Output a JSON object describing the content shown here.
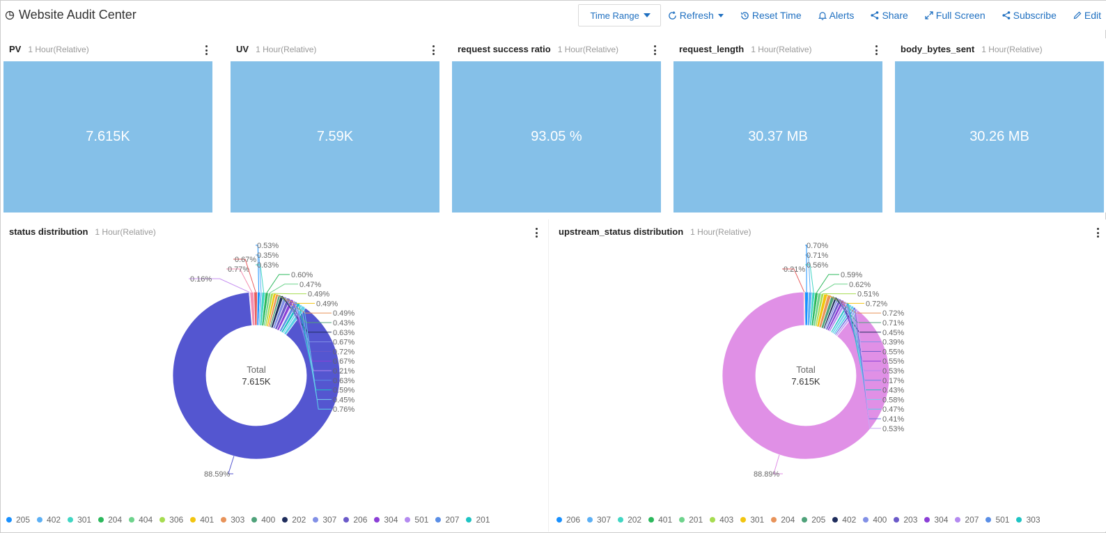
{
  "header": {
    "title": "Website Audit Center",
    "time_range_label": "Time Range",
    "refresh_label": "Refresh",
    "reset_time_label": "Reset Time",
    "alerts_label": "Alerts",
    "share_label": "Share",
    "full_screen_label": "Full Screen",
    "subscribe_label": "Subscribe",
    "edit_label": "Edit"
  },
  "stats": [
    {
      "title": "PV",
      "sub": "1 Hour(Relative)",
      "value": "7.615K"
    },
    {
      "title": "UV",
      "sub": "1 Hour(Relative)",
      "value": "7.59K"
    },
    {
      "title": "request success ratio",
      "sub": "1 Hour(Relative)",
      "value": "93.05 %"
    },
    {
      "title": "request_length",
      "sub": "1 Hour(Relative)",
      "value": "30.37 MB"
    },
    {
      "title": "body_bytes_sent",
      "sub": "1 Hour(Relative)",
      "value": "30.26 MB"
    }
  ],
  "colors": {
    "stat_fill": "#85c0e8",
    "accent": "#1e6fc0",
    "status_major": "#5456d0",
    "upstream_major": "#e090e6"
  },
  "chart_data": [
    {
      "type": "pie",
      "title": "status distribution",
      "subtitle": "1 Hour(Relative)",
      "center_label": "Total",
      "center_value": "7.615K",
      "slices": [
        {
          "label": "0.16%",
          "value": 0.16,
          "color": "#c58ef0"
        },
        {
          "label": "0.77%",
          "value": 0.77,
          "color": "#f48fb1"
        },
        {
          "label": "0.67%",
          "value": 0.67,
          "color": "#e85d5d"
        },
        {
          "label": "0.53%",
          "value": 0.53,
          "color": "#1890ff"
        },
        {
          "label": "0.35%",
          "value": 0.35,
          "color": "#5cb0f5"
        },
        {
          "label": "0.63%",
          "value": 0.63,
          "color": "#41d6c3"
        },
        {
          "label": "0.60%",
          "value": 0.6,
          "color": "#2cb85c"
        },
        {
          "label": "0.47%",
          "value": 0.47,
          "color": "#6ed38c"
        },
        {
          "label": "0.49%",
          "value": 0.49,
          "color": "#a6dc50"
        },
        {
          "label": "0.49%",
          "value": 0.49,
          "color": "#f2c510"
        },
        {
          "label": "0.49%",
          "value": 0.49,
          "color": "#e8935a"
        },
        {
          "label": "0.43%",
          "value": 0.43,
          "color": "#4fa27a"
        },
        {
          "label": "0.63%",
          "value": 0.63,
          "color": "#1f2d5c"
        },
        {
          "label": "0.67%",
          "value": 0.67,
          "color": "#8290e6"
        },
        {
          "label": "0.72%",
          "value": 0.72,
          "color": "#6b5ac9"
        },
        {
          "label": "0.67%",
          "value": 0.67,
          "color": "#8b3fd6"
        },
        {
          "label": "0.21%",
          "value": 0.21,
          "color": "#b48af0"
        },
        {
          "label": "0.63%",
          "value": 0.63,
          "color": "#5a8ee6"
        },
        {
          "label": "0.59%",
          "value": 0.59,
          "color": "#1ec4c4"
        },
        {
          "label": "0.45%",
          "value": 0.45,
          "color": "#7ad0f0"
        },
        {
          "label": "0.76%",
          "value": 0.76,
          "color": "#5cd0e8"
        },
        {
          "label": "88.59%",
          "value": 88.59,
          "color": "#5456d0"
        }
      ],
      "legend": [
        {
          "name": "205",
          "color": "#1890ff"
        },
        {
          "name": "402",
          "color": "#5cb0f5"
        },
        {
          "name": "301",
          "color": "#41d6c3"
        },
        {
          "name": "204",
          "color": "#2cb85c"
        },
        {
          "name": "404",
          "color": "#6ed38c"
        },
        {
          "name": "306",
          "color": "#a6dc50"
        },
        {
          "name": "401",
          "color": "#f2c510"
        },
        {
          "name": "303",
          "color": "#e8935a"
        },
        {
          "name": "400",
          "color": "#4fa27a"
        },
        {
          "name": "202",
          "color": "#1f2d5c"
        },
        {
          "name": "307",
          "color": "#8290e6"
        },
        {
          "name": "206",
          "color": "#6b5ac9"
        },
        {
          "name": "304",
          "color": "#8b3fd6"
        },
        {
          "name": "501",
          "color": "#b48af0"
        },
        {
          "name": "207",
          "color": "#5a8ee6"
        },
        {
          "name": "201",
          "color": "#1ec4c4"
        }
      ]
    },
    {
      "type": "pie",
      "title": "upstream_status distribution",
      "subtitle": "1 Hour(Relative)",
      "center_label": "Total",
      "center_value": "7.615K",
      "slices": [
        {
          "label": "0.21%",
          "value": 0.21,
          "color": "#e85d5d"
        },
        {
          "label": "0.70%",
          "value": 0.7,
          "color": "#1890ff"
        },
        {
          "label": "0.71%",
          "value": 0.71,
          "color": "#5cb0f5"
        },
        {
          "label": "0.56%",
          "value": 0.56,
          "color": "#41d6c3"
        },
        {
          "label": "0.59%",
          "value": 0.59,
          "color": "#2cb85c"
        },
        {
          "label": "0.62%",
          "value": 0.62,
          "color": "#6ed38c"
        },
        {
          "label": "0.51%",
          "value": 0.51,
          "color": "#a6dc50"
        },
        {
          "label": "0.72%",
          "value": 0.72,
          "color": "#f2c510"
        },
        {
          "label": "0.72%",
          "value": 0.72,
          "color": "#e8935a"
        },
        {
          "label": "0.71%",
          "value": 0.71,
          "color": "#4fa27a"
        },
        {
          "label": "0.45%",
          "value": 0.45,
          "color": "#1f2d5c"
        },
        {
          "label": "0.39%",
          "value": 0.39,
          "color": "#8290e6"
        },
        {
          "label": "0.55%",
          "value": 0.55,
          "color": "#6b5ac9"
        },
        {
          "label": "0.55%",
          "value": 0.55,
          "color": "#8b3fd6"
        },
        {
          "label": "0.53%",
          "value": 0.53,
          "color": "#b48af0"
        },
        {
          "label": "0.17%",
          "value": 0.17,
          "color": "#5a8ee6"
        },
        {
          "label": "0.43%",
          "value": 0.43,
          "color": "#1ec4c4"
        },
        {
          "label": "0.58%",
          "value": 0.58,
          "color": "#7ad0f0"
        },
        {
          "label": "0.47%",
          "value": 0.47,
          "color": "#5cd0e8"
        },
        {
          "label": "0.41%",
          "value": 0.41,
          "color": "#6a6fe0"
        },
        {
          "label": "0.53%",
          "value": 0.53,
          "color": "#c9a8f5"
        },
        {
          "label": "88.89%",
          "value": 88.89,
          "color": "#e090e6"
        }
      ],
      "legend": [
        {
          "name": "206",
          "color": "#1890ff"
        },
        {
          "name": "307",
          "color": "#5cb0f5"
        },
        {
          "name": "202",
          "color": "#41d6c3"
        },
        {
          "name": "401",
          "color": "#2cb85c"
        },
        {
          "name": "201",
          "color": "#6ed38c"
        },
        {
          "name": "403",
          "color": "#a6dc50"
        },
        {
          "name": "301",
          "color": "#f2c510"
        },
        {
          "name": "204",
          "color": "#e8935a"
        },
        {
          "name": "205",
          "color": "#4fa27a"
        },
        {
          "name": "402",
          "color": "#1f2d5c"
        },
        {
          "name": "400",
          "color": "#8290e6"
        },
        {
          "name": "203",
          "color": "#6b5ac9"
        },
        {
          "name": "304",
          "color": "#8b3fd6"
        },
        {
          "name": "207",
          "color": "#b48af0"
        },
        {
          "name": "501",
          "color": "#5a8ee6"
        },
        {
          "name": "303",
          "color": "#1ec4c4"
        }
      ]
    }
  ]
}
